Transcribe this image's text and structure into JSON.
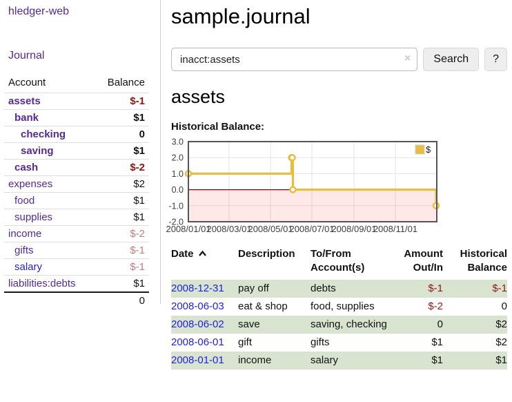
{
  "app": {
    "title": "hledger-web",
    "nav_journal": "Journal"
  },
  "sidebar": {
    "header": {
      "account": "Account",
      "balance": "Balance"
    },
    "accounts": [
      {
        "name": "assets",
        "indent": 0,
        "bold": true,
        "balance": "$-1",
        "negative": "strong"
      },
      {
        "name": "bank",
        "indent": 1,
        "bold": true,
        "balance": "$1"
      },
      {
        "name": "checking",
        "indent": 2,
        "bold": true,
        "balance": "0"
      },
      {
        "name": "saving",
        "indent": 2,
        "bold": true,
        "balance": "$1"
      },
      {
        "name": "cash",
        "indent": 1,
        "bold": true,
        "balance": "$-2",
        "negative": "strong"
      },
      {
        "name": "expenses",
        "indent": 0,
        "bold": false,
        "balance": "$2"
      },
      {
        "name": "food",
        "indent": 1,
        "bold": false,
        "balance": "$1"
      },
      {
        "name": "supplies",
        "indent": 1,
        "bold": false,
        "balance": "$1"
      },
      {
        "name": "income",
        "indent": 0,
        "bold": false,
        "balance": "$-2",
        "negative": "muted"
      },
      {
        "name": "gifts",
        "indent": 1,
        "bold": false,
        "balance": "$-1",
        "negative": "muted"
      },
      {
        "name": "salary",
        "indent": 1,
        "bold": false,
        "balance": "$-1",
        "negative": "muted",
        "link_color": "blue"
      },
      {
        "name": "liabilities:debts",
        "indent": 0,
        "bold": false,
        "balance": "$1"
      }
    ],
    "total": "0"
  },
  "main": {
    "title": "sample.journal",
    "search": {
      "value": "inacct:assets",
      "clear_icon": "×",
      "button": "Search",
      "help_button": "?"
    },
    "account_heading": "assets",
    "chart_label": "Historical Balance:"
  },
  "chart_data": {
    "type": "line",
    "step": true,
    "title": "Historical Balance",
    "series": [
      {
        "name": "$",
        "color": "#e9bd3f",
        "points": [
          {
            "x": "2008-01-01",
            "y": 1
          },
          {
            "x": "2008-06-01",
            "y": 2
          },
          {
            "x": "2008-06-02",
            "y": 2
          },
          {
            "x": "2008-06-03",
            "y": 0
          },
          {
            "x": "2008-12-31",
            "y": -1
          }
        ]
      }
    ],
    "x_range": [
      "2008-01-01",
      "2009-01-01"
    ],
    "x_ticks": [
      "2008/01/01",
      "2008/03/01",
      "2008/05/01",
      "2008/07/01",
      "2008/09/01",
      "2008/11/01"
    ],
    "y_ticks": [
      3.0,
      2.0,
      1.0,
      0.0,
      -1.0,
      -2.0
    ],
    "ylim": [
      -2,
      3
    ],
    "legend": {
      "label": "$",
      "position": "top-right"
    },
    "grid": {
      "color": "#e3e3e3",
      "border": "#545454"
    },
    "zero_line": {
      "y": 0,
      "color": "#8b0000"
    },
    "negative_region": {
      "from": 0,
      "to": -2,
      "color": "rgba(255,0,0,0.09)"
    },
    "axis_label_color": "#3c3c3c"
  },
  "register": {
    "columns": [
      {
        "label": "Date",
        "sorted": "asc"
      },
      {
        "label": "Description"
      },
      {
        "label": "To/From Account(s)"
      },
      {
        "label": "Amount Out/In",
        "align": "right"
      },
      {
        "label": "Historical Balance",
        "align": "right"
      }
    ],
    "rows": [
      {
        "date": "2008-12-31",
        "description": "pay off",
        "accounts": "debts",
        "amount": "$-1",
        "amount_negative": true,
        "balance": "$-1",
        "balance_negative": true
      },
      {
        "date": "2008-06-03",
        "description": "eat & shop",
        "accounts": "food, supplies",
        "amount": "$-2",
        "amount_negative": true,
        "balance": "0",
        "balance_negative": false
      },
      {
        "date": "2008-06-02",
        "description": "save",
        "accounts": "saving, checking",
        "amount": "0",
        "amount_negative": false,
        "balance": "$2",
        "balance_negative": false
      },
      {
        "date": "2008-06-01",
        "description": "gift",
        "accounts": "gifts",
        "amount": "$1",
        "amount_negative": false,
        "balance": "$2",
        "balance_negative": false
      },
      {
        "date": "2008-01-01",
        "description": "income",
        "accounts": "salary",
        "amount": "$1",
        "amount_negative": false,
        "balance": "$1",
        "balance_negative": false
      }
    ]
  }
}
